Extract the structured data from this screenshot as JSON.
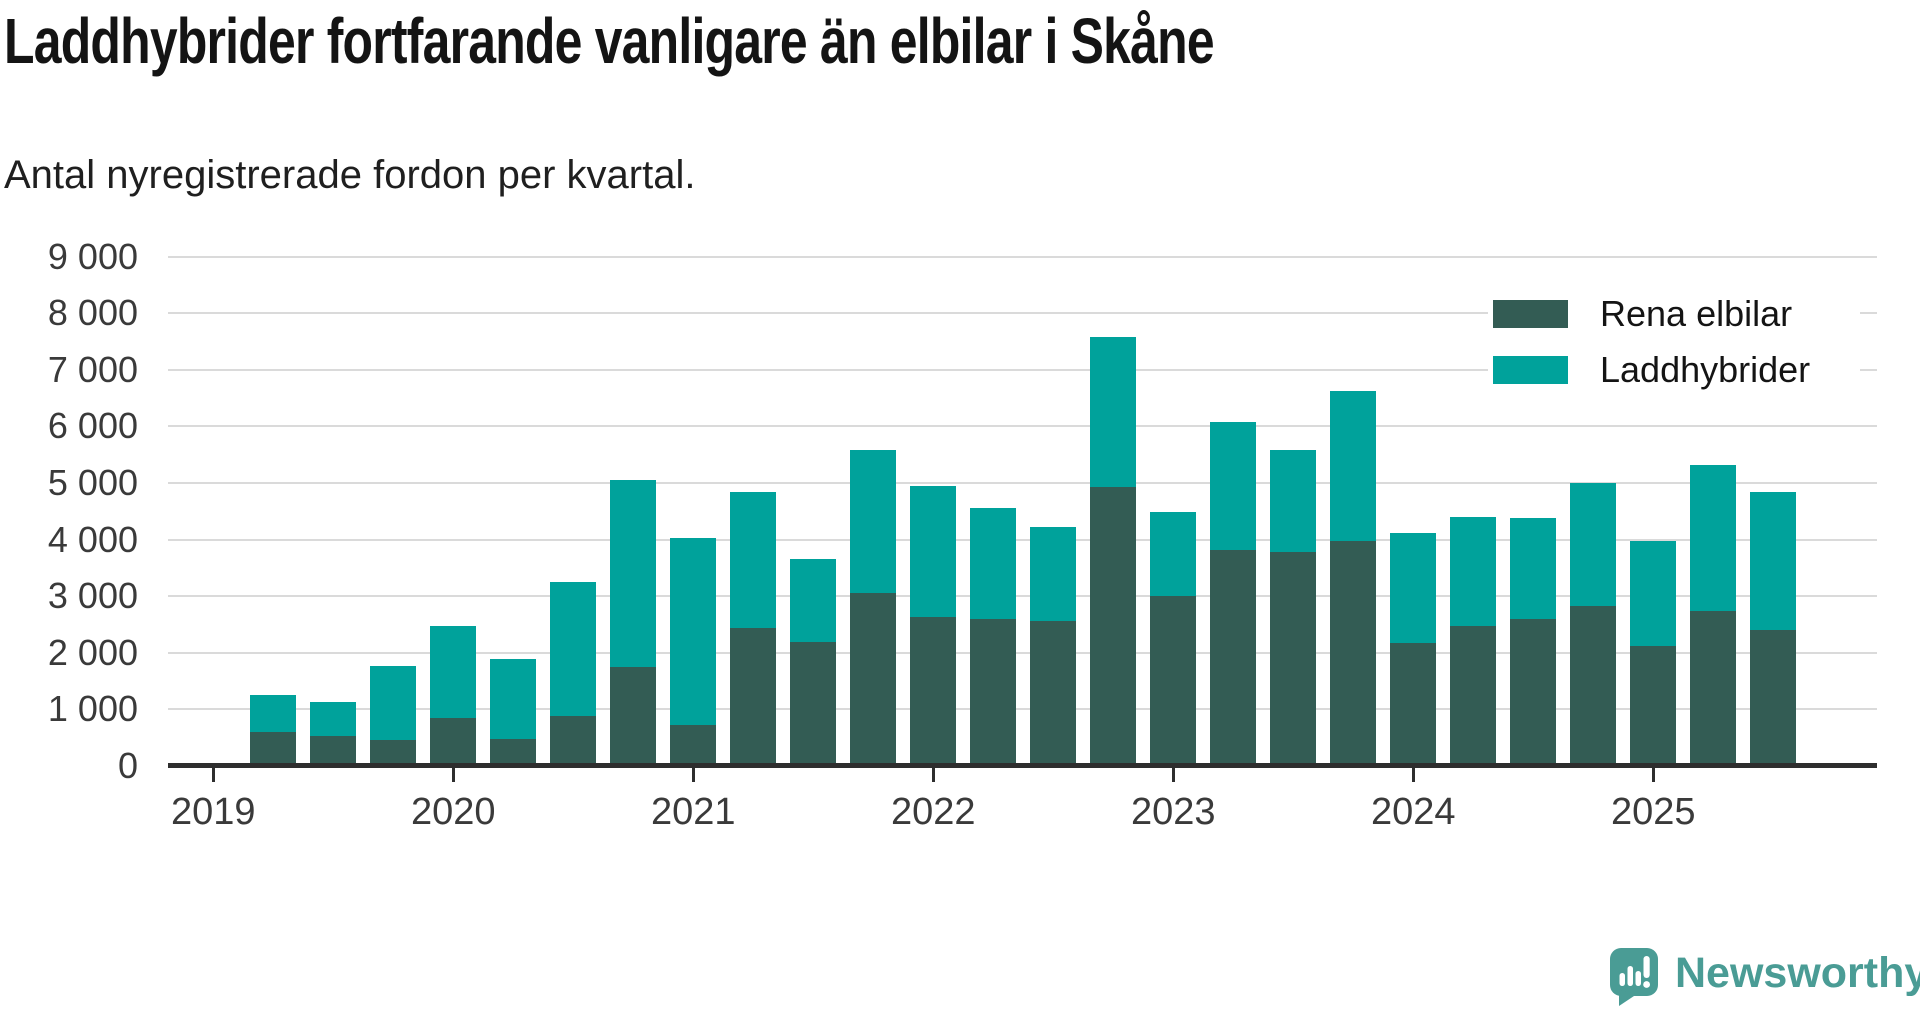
{
  "header": {
    "title": "Laddhybrider fortfarande vanligare än elbilar i Skåne",
    "subtitle": "Antal nyregistrerade fordon per kvartal."
  },
  "legend": {
    "items": [
      {
        "label": "Rena elbilar",
        "color": "#335C54"
      },
      {
        "label": "Laddhybrider",
        "color": "#00A29B"
      }
    ]
  },
  "footer": {
    "brand": "Newsworthy",
    "brand_color": "#4a9c95"
  },
  "colors": {
    "bar_dark": "#335C54",
    "bar_teal": "#00A29B",
    "grid": "#dadada",
    "axis": "#2e2e2e",
    "tick_text": "#3a3a3a",
    "title_text": "#141414"
  },
  "chart_data": {
    "type": "bar",
    "stacked": true,
    "title": "Laddhybrider fortfarande vanligare än elbilar i Skåne",
    "subtitle": "Antal nyregistrerade fordon per kvartal.",
    "xlabel": "",
    "ylabel": "",
    "ylim": [
      0,
      9000
    ],
    "ytick_step": 1000,
    "grid": true,
    "legend_position": "top-right",
    "y_tick_labels": [
      "0",
      "1 000",
      "2 000",
      "3 000",
      "4 000",
      "5 000",
      "6 000",
      "7 000",
      "8 000",
      "9 000"
    ],
    "x_tick_labels": [
      "2019",
      "2020",
      "2021",
      "2022",
      "2023",
      "2024",
      "2025"
    ],
    "categories": [
      "2019 Q2",
      "2019 Q3",
      "2019 Q4",
      "2020 Q1",
      "2020 Q2",
      "2020 Q3",
      "2020 Q4",
      "2021 Q1",
      "2021 Q2",
      "2021 Q3",
      "2021 Q4",
      "2022 Q1",
      "2022 Q2",
      "2022 Q3",
      "2022 Q4",
      "2023 Q1",
      "2023 Q2",
      "2023 Q3",
      "2023 Q4",
      "2024 Q1",
      "2024 Q2",
      "2024 Q3",
      "2024 Q4",
      "2025 Q1",
      "2025 Q2",
      "2025 Q3"
    ],
    "series": [
      {
        "name": "Rena elbilar",
        "color": "#335C54",
        "values": [
          605,
          535,
          460,
          840,
          475,
          890,
          1750,
          725,
          2435,
          2185,
          3065,
          2640,
          2595,
          2565,
          4930,
          3000,
          3820,
          3775,
          3970,
          2170,
          2480,
          2600,
          2830,
          2125,
          2745,
          2405
        ]
      },
      {
        "name": "Laddhybrider",
        "color": "#00A29B",
        "values": [
          650,
          600,
          1310,
          1625,
          1410,
          2365,
          3305,
          3295,
          2410,
          1470,
          2515,
          2310,
          1955,
          1665,
          2645,
          1480,
          2260,
          1810,
          2660,
          1955,
          1915,
          1790,
          2165,
          1855,
          2575,
          2430
        ]
      }
    ]
  }
}
